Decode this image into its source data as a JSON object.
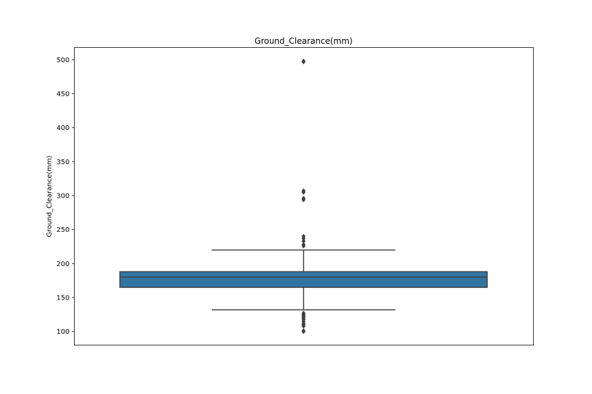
{
  "chart_data": {
    "type": "box",
    "title": "Ground_Clearance(mm)",
    "xlabel": "",
    "ylabel": "Ground_Clearance(mm)",
    "ylim": [
      80,
      518
    ],
    "yticks": [
      100,
      150,
      200,
      250,
      300,
      350,
      400,
      450,
      500
    ],
    "grid": false,
    "box": {
      "whisker_low": 132,
      "q1": 165,
      "median": 180,
      "q3": 188,
      "whisker_high": 220,
      "outliers": [
        100,
        101,
        108,
        110,
        112,
        115,
        118,
        120,
        122,
        123,
        125,
        127,
        226,
        228,
        233,
        237,
        240,
        294,
        296,
        305,
        307,
        497,
        498
      ],
      "fill_color": "#3274a1",
      "line_color": "#3f3f3f"
    }
  }
}
